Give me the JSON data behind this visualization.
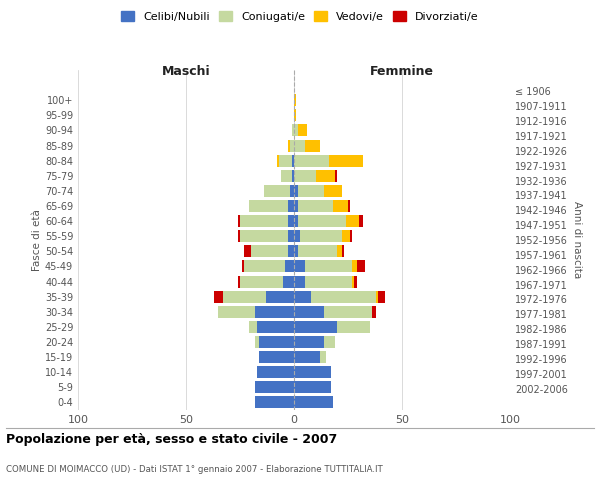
{
  "age_groups": [
    "0-4",
    "5-9",
    "10-14",
    "15-19",
    "20-24",
    "25-29",
    "30-34",
    "35-39",
    "40-44",
    "45-49",
    "50-54",
    "55-59",
    "60-64",
    "65-69",
    "70-74",
    "75-79",
    "80-84",
    "85-89",
    "90-94",
    "95-99",
    "100+"
  ],
  "birth_years": [
    "2002-2006",
    "1997-2001",
    "1992-1996",
    "1987-1991",
    "1982-1986",
    "1977-1981",
    "1972-1976",
    "1967-1971",
    "1962-1966",
    "1957-1961",
    "1952-1956",
    "1947-1951",
    "1942-1946",
    "1937-1941",
    "1932-1936",
    "1927-1931",
    "1922-1926",
    "1917-1921",
    "1912-1916",
    "1907-1911",
    "≤ 1906"
  ],
  "males": {
    "celibe": [
      18,
      18,
      17,
      16,
      16,
      17,
      18,
      13,
      5,
      4,
      3,
      3,
      3,
      3,
      2,
      1,
      1,
      0,
      0,
      0,
      0
    ],
    "coniugato": [
      0,
      0,
      0,
      0,
      2,
      4,
      17,
      20,
      20,
      19,
      17,
      22,
      22,
      18,
      12,
      5,
      6,
      2,
      1,
      0,
      0
    ],
    "vedovo": [
      0,
      0,
      0,
      0,
      0,
      0,
      0,
      0,
      0,
      0,
      0,
      0,
      0,
      0,
      0,
      0,
      1,
      1,
      0,
      0,
      0
    ],
    "divorziato": [
      0,
      0,
      0,
      0,
      0,
      0,
      0,
      4,
      1,
      1,
      3,
      1,
      1,
      0,
      0,
      0,
      0,
      0,
      0,
      0,
      0
    ]
  },
  "females": {
    "nubile": [
      18,
      17,
      17,
      12,
      14,
      20,
      14,
      8,
      5,
      5,
      2,
      3,
      2,
      2,
      2,
      0,
      0,
      0,
      0,
      0,
      0
    ],
    "coniugata": [
      0,
      0,
      0,
      3,
      5,
      15,
      22,
      30,
      22,
      22,
      18,
      19,
      22,
      16,
      12,
      10,
      16,
      5,
      2,
      0,
      0
    ],
    "vedova": [
      0,
      0,
      0,
      0,
      0,
      0,
      0,
      1,
      1,
      2,
      2,
      4,
      6,
      7,
      8,
      9,
      16,
      7,
      4,
      1,
      1
    ],
    "divorziata": [
      0,
      0,
      0,
      0,
      0,
      0,
      2,
      3,
      1,
      4,
      1,
      1,
      2,
      1,
      0,
      1,
      0,
      0,
      0,
      0,
      0
    ]
  },
  "colors": {
    "celibe": "#4472c4",
    "coniugato": "#c5d9a0",
    "vedovo": "#ffc000",
    "divorziato": "#cc0000"
  },
  "title": "Popolazione per età, sesso e stato civile - 2007",
  "subtitle": "COMUNE DI MOIMACCO (UD) - Dati ISTAT 1° gennaio 2007 - Elaborazione TUTTITALIA.IT",
  "xlabel_left": "Maschi",
  "xlabel_right": "Femmine",
  "ylabel_left": "Fasce di età",
  "ylabel_right": "Anni di nascita",
  "xlim": 100,
  "bg_color": "#ffffff",
  "grid_color": "#cccccc"
}
